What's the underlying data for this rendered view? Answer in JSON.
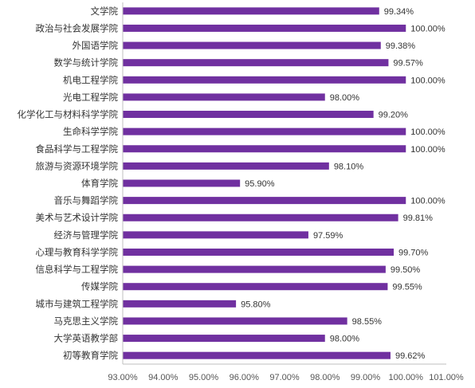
{
  "chart_data": {
    "type": "bar",
    "orientation": "horizontal",
    "categories": [
      "文学院",
      "政治与社会发展学院",
      "外国语学院",
      "数学与统计学院",
      "机电工程学院",
      "光电工程学院",
      "化学化工与材料科学学院",
      "生命科学学院",
      "食品科学与工程学院",
      "旅游与资源环境学院",
      "体育学院",
      "音乐与舞蹈学院",
      "美术与艺术设计学院",
      "经济与管理学院",
      "心理与教育科学学院",
      "信息科学与工程学院",
      "传媒学院",
      "城市与建筑工程学院",
      "马克思主义学院",
      "大学英语教学部",
      "初等教育学院"
    ],
    "values": [
      99.34,
      100.0,
      99.38,
      99.57,
      100.0,
      98.0,
      99.2,
      100.0,
      100.0,
      98.1,
      95.9,
      100.0,
      99.81,
      97.59,
      99.7,
      99.5,
      99.55,
      95.8,
      98.55,
      98.0,
      99.62
    ],
    "value_labels": [
      "99.34%",
      "100.00%",
      "99.38%",
      "99.57%",
      "100.00%",
      "98.00%",
      "99.20%",
      "100.00%",
      "100.00%",
      "98.10%",
      "95.90%",
      "100.00%",
      "99.81%",
      "97.59%",
      "99.70%",
      "99.50%",
      "99.55%",
      "95.80%",
      "98.55%",
      "98.00%",
      "99.62%"
    ],
    "xlim": [
      93.0,
      101.0
    ],
    "xticks": [
      93,
      94,
      95,
      96,
      97,
      98,
      99,
      100,
      101
    ],
    "xtick_labels": [
      "93.00%",
      "94.00%",
      "95.00%",
      "96.00%",
      "97.00%",
      "98.00%",
      "99.00%",
      "100.00%",
      "101.00%"
    ],
    "bar_color": "#7030a0",
    "grid": false,
    "legend": "none",
    "title": "",
    "xlabel": "",
    "ylabel": ""
  }
}
